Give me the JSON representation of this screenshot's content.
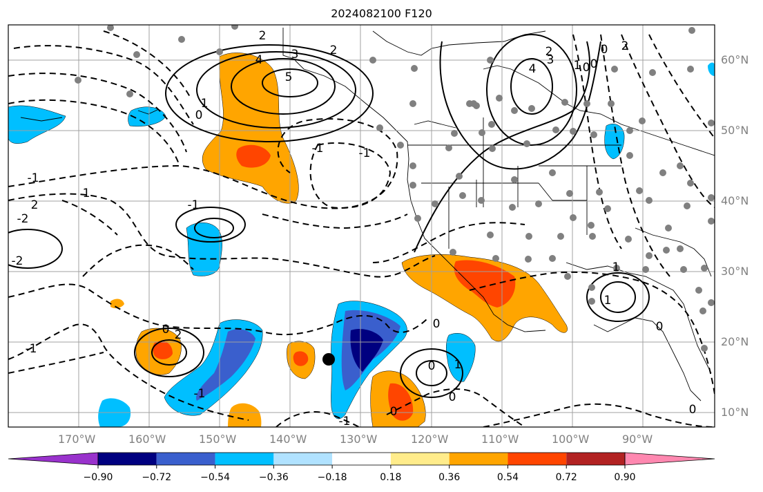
{
  "title": "2024082100 F120",
  "map": {
    "lon_ticks": [
      "170°W",
      "160°W",
      "150°W",
      "140°W",
      "130°W",
      "120°W",
      "110°W",
      "100°W",
      "90°W"
    ],
    "lat_ticks": [
      "60°N",
      "50°N",
      "40°N",
      "30°N",
      "20°N",
      "10°N"
    ],
    "contour_labels": [
      "2",
      "3",
      "2",
      "4",
      "5",
      "4",
      "3",
      "2",
      "1",
      "0",
      "1",
      "0",
      "-1",
      "-1",
      "-1",
      "1",
      "2",
      "-2",
      "-2",
      "-1",
      "0",
      "0",
      "0",
      "0",
      "-1",
      "1",
      "2",
      "0",
      "1",
      "0",
      "1",
      "0",
      "-1",
      "2",
      "0",
      "0",
      "-1"
    ],
    "shading_colors": {
      "neg_strong": "#000080",
      "neg_mid": "#3a5fcd",
      "neg_weak": "#00bfff",
      "pos_weak": "#ffa500",
      "pos_mid": "#ff4500"
    }
  },
  "colorbar": {
    "levels": [
      "−0.90",
      "−0.72",
      "−0.54",
      "−0.36",
      "−0.18",
      "0.18",
      "0.36",
      "0.54",
      "0.72",
      "0.90"
    ],
    "colors": [
      "#9932cc",
      "#000080",
      "#3a5fcd",
      "#00bfff",
      "#b0e2ff",
      "#ffffff",
      "#ffec8b",
      "#ffa500",
      "#ff4500",
      "#b22222",
      "#ff88b0"
    ]
  }
}
